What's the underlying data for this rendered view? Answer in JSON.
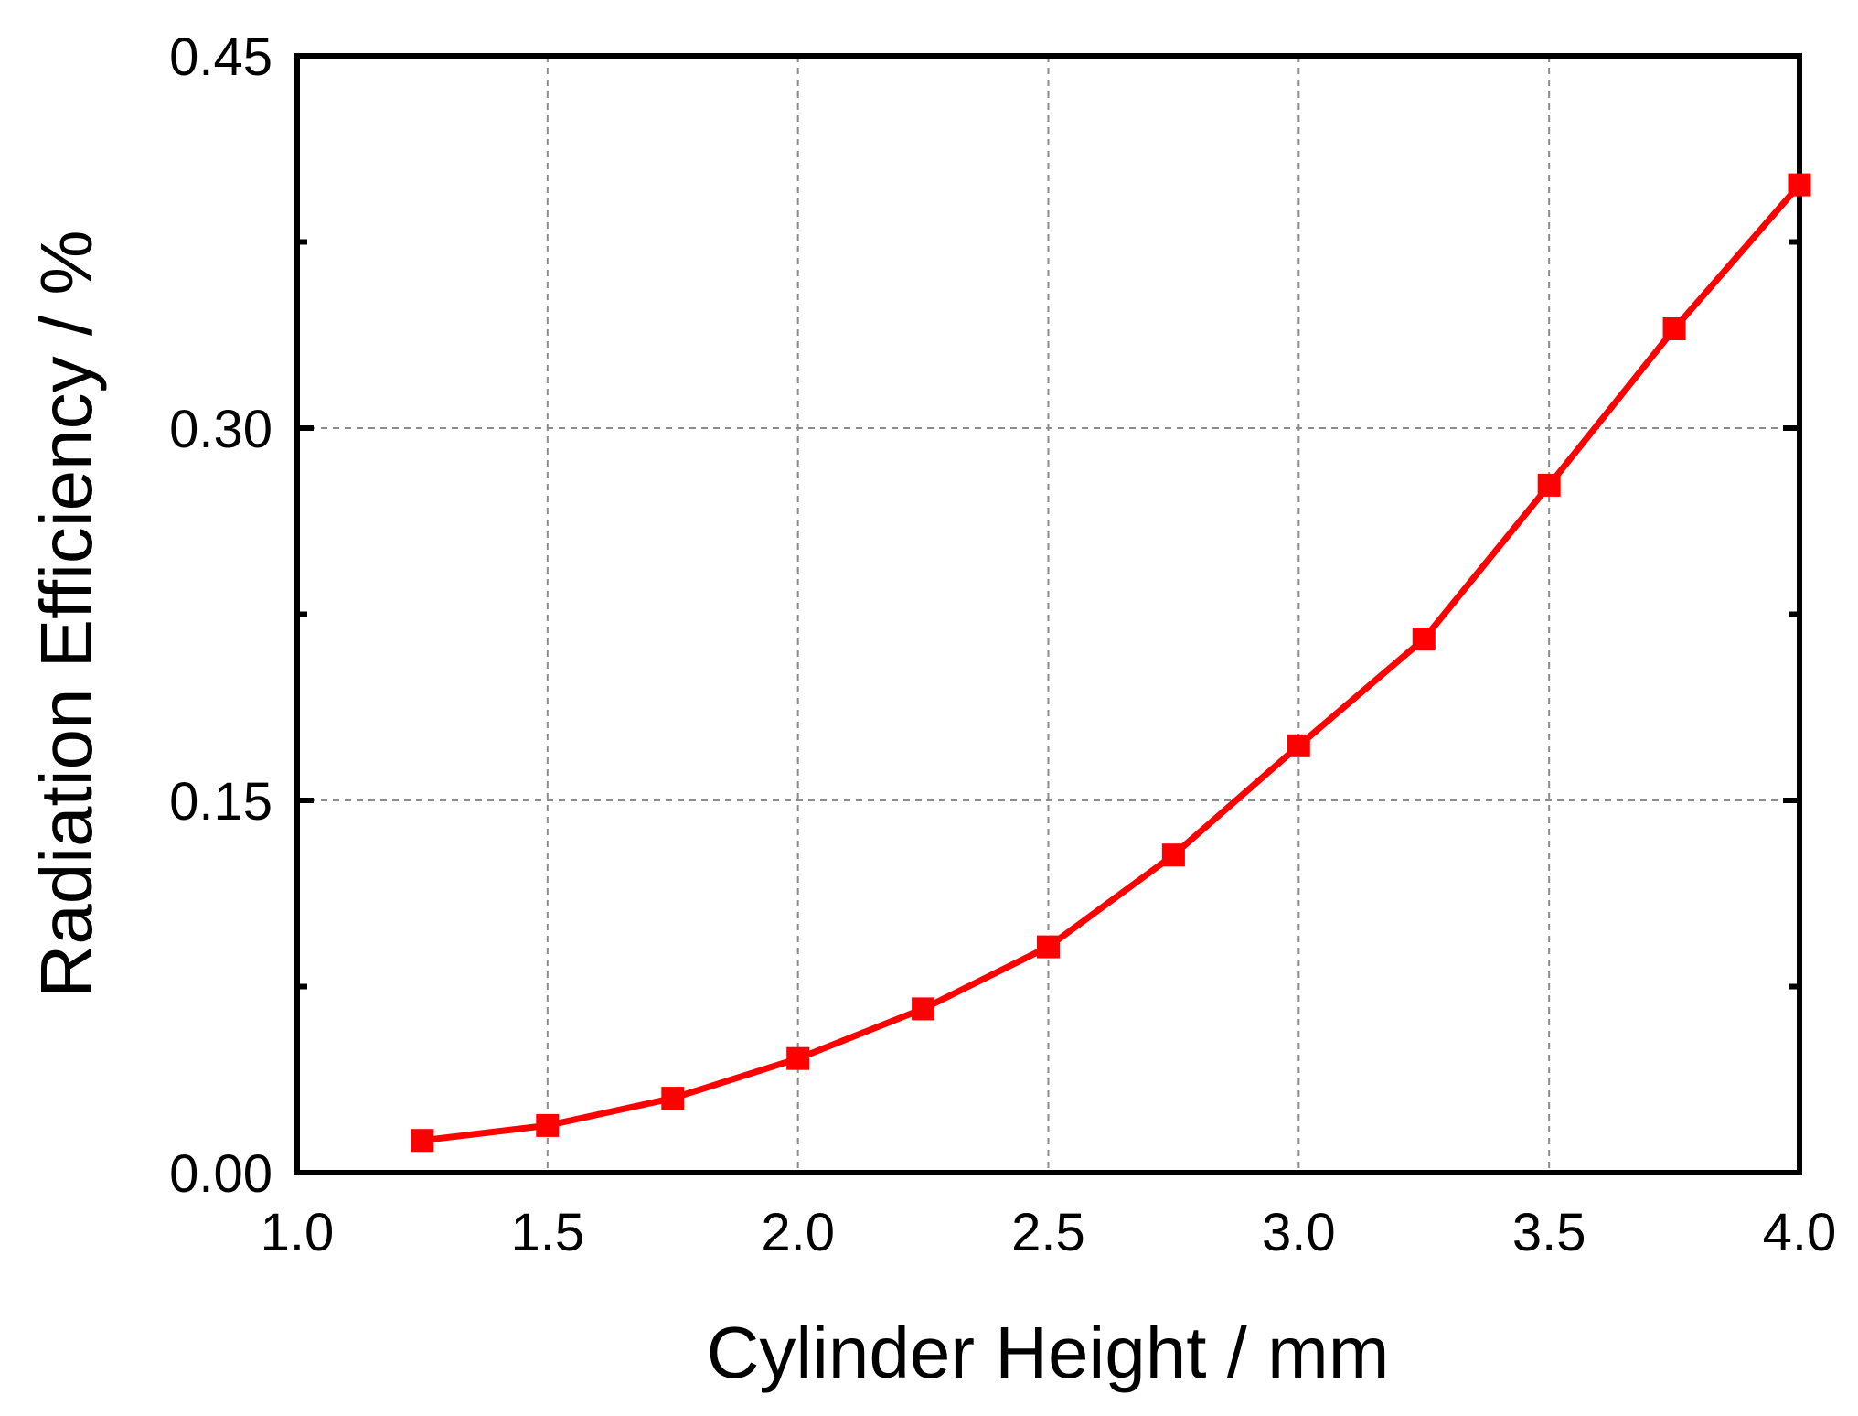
{
  "chart_data": {
    "type": "line",
    "xlabel": "Cylinder Height / mm",
    "ylabel": "Radiation Efficiency / %",
    "xlim": [
      1.0,
      4.0
    ],
    "ylim": [
      0.0,
      0.45
    ],
    "xticks": [
      "1.0",
      "1.5",
      "2.0",
      "2.5",
      "3.0",
      "3.5",
      "4.0"
    ],
    "yticks": [
      "0.00",
      "0.15",
      "0.30",
      "0.45"
    ],
    "grid": true,
    "series": [
      {
        "color": "#ff0000",
        "marker": "square",
        "x": [
          1.25,
          1.5,
          1.75,
          2.0,
          2.25,
          2.5,
          2.75,
          3.0,
          3.25,
          3.5,
          3.75,
          4.0
        ],
        "y": [
          0.013,
          0.019,
          0.03,
          0.046,
          0.066,
          0.091,
          0.128,
          0.172,
          0.215,
          0.277,
          0.34,
          0.398
        ]
      }
    ]
  }
}
